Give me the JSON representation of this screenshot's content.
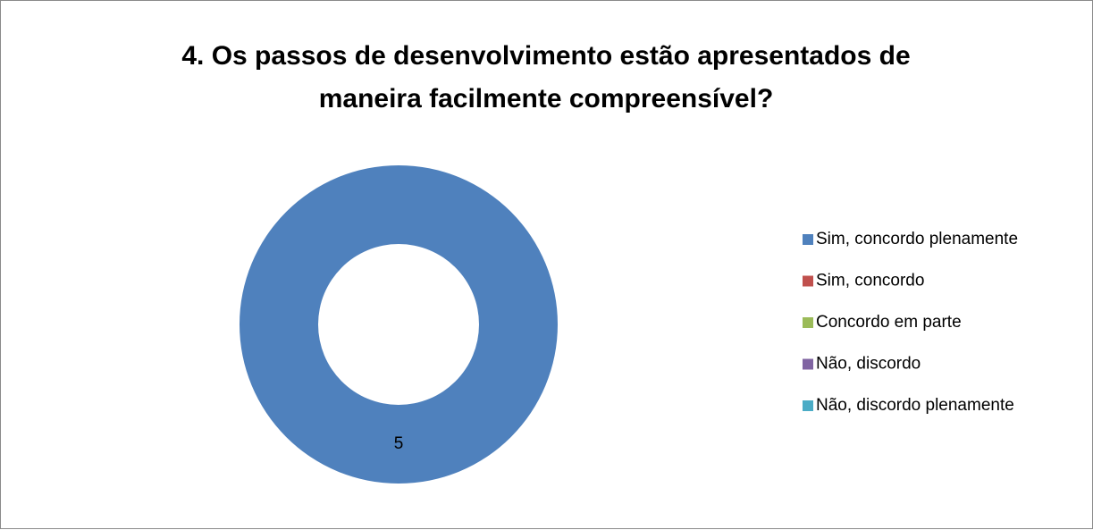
{
  "chart_data": {
    "type": "donut",
    "title": "4. Os passos de desenvolvimento estão apresentados de maneira facilmente compreensível?",
    "categories": [
      "Sim, concordo plenamente",
      "Sim, concordo",
      "Concordo em parte",
      "Não, discordo",
      "Não, discordo plenamente"
    ],
    "values": [
      5,
      0,
      0,
      0,
      0
    ],
    "colors": [
      "#4f81bd",
      "#c0504d",
      "#9bbb59",
      "#8064a2",
      "#4bacc6"
    ],
    "legend": "right"
  }
}
